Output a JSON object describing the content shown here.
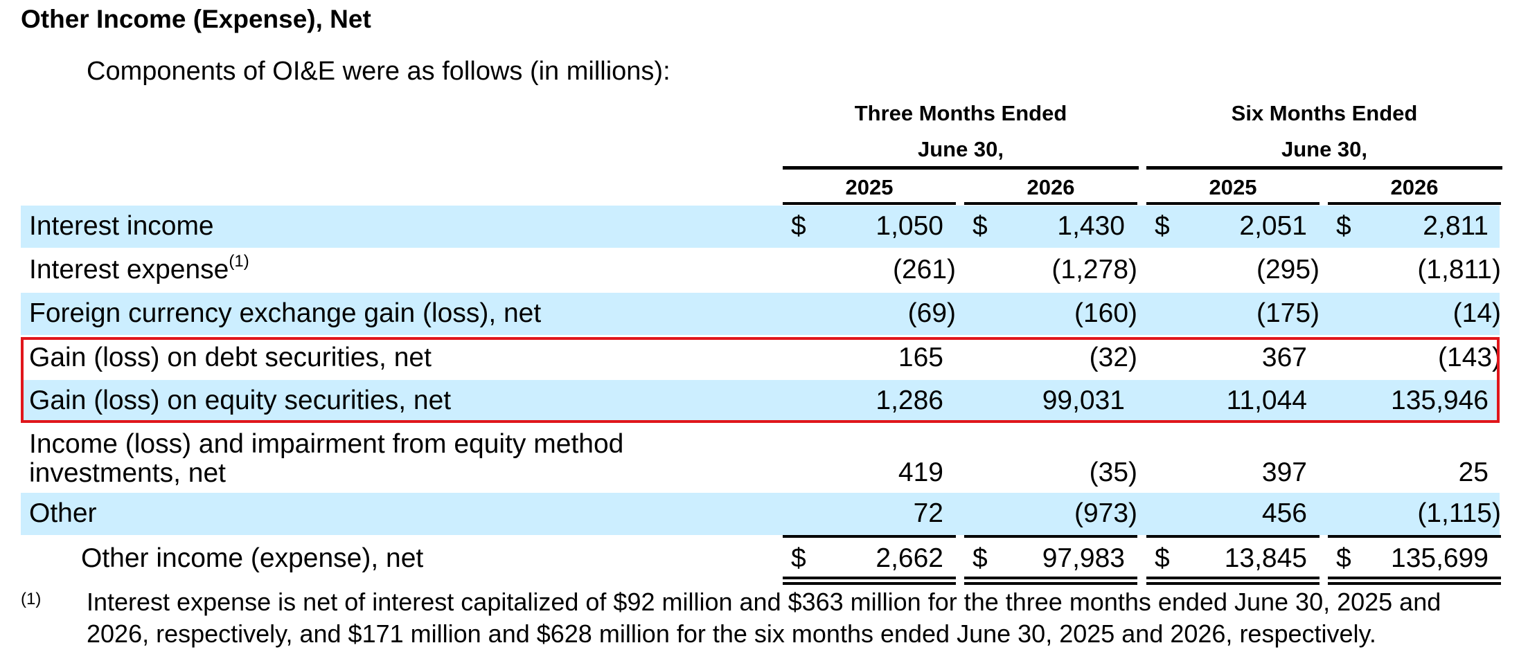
{
  "title": "Other Income (Expense), Net",
  "intro": "Components of OI&E were as follows (in millions):",
  "column_groups": [
    {
      "line1": "Three Months Ended",
      "line2": "June 30,",
      "years": [
        "2025",
        "2026"
      ]
    },
    {
      "line1": "Six Months Ended",
      "line2": "June 30,",
      "years": [
        "2025",
        "2026"
      ]
    }
  ],
  "currency_symbol": "$",
  "rows": [
    {
      "label": "Interest income",
      "footnote_ref": "",
      "values": [
        "1,050",
        "1,430",
        "2,051",
        "2,811"
      ],
      "dollar": true,
      "shaded": true
    },
    {
      "label": "Interest expense",
      "footnote_ref": "(1)",
      "values": [
        "(261)",
        "(1,278)",
        "(295)",
        "(1,811)"
      ],
      "dollar": false,
      "shaded": false
    },
    {
      "label": "Foreign currency exchange gain (loss), net",
      "footnote_ref": "",
      "values": [
        "(69)",
        "(160)",
        "(175)",
        "(14)"
      ],
      "dollar": false,
      "shaded": true
    },
    {
      "label": "Gain (loss) on debt securities, net",
      "footnote_ref": "",
      "values": [
        "165",
        "(32)",
        "367",
        "(143)"
      ],
      "dollar": false,
      "shaded": false
    },
    {
      "label": "Gain (loss) on equity securities, net",
      "footnote_ref": "",
      "values": [
        "1,286",
        "99,031",
        "11,044",
        "135,946"
      ],
      "dollar": false,
      "shaded": true
    },
    {
      "label": "Income (loss) and impairment from equity method investments, net",
      "footnote_ref": "",
      "values": [
        "419",
        "(35)",
        "397",
        "25"
      ],
      "dollar": false,
      "shaded": false
    },
    {
      "label": "Other",
      "footnote_ref": "",
      "values": [
        "72",
        "(973)",
        "456",
        "(1,115)"
      ],
      "dollar": false,
      "shaded": true
    }
  ],
  "total": {
    "label": "Other income (expense), net",
    "values": [
      "2,662",
      "97,983",
      "13,845",
      "135,699"
    ]
  },
  "footnote": {
    "marker": "(1)",
    "text": "Interest expense is net of interest capitalized of $92 million and $363 million for the three months ended June 30, 2025 and 2026, respectively, and $171 million and $628 million for the six months ended June 30, 2025 and 2026, respectively."
  },
  "colors": {
    "row_shading": "#cceeff",
    "highlight_border": "#e0161b"
  }
}
